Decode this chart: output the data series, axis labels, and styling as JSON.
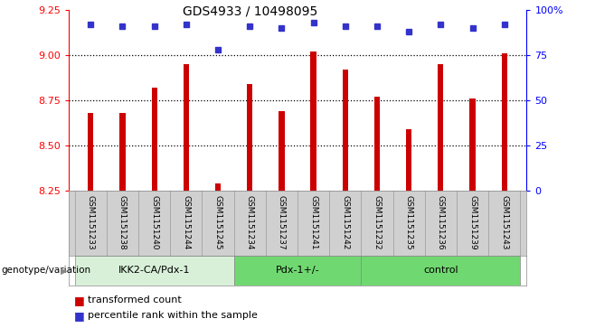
{
  "title": "GDS4933 / 10498095",
  "samples": [
    "GSM1151233",
    "GSM1151238",
    "GSM1151240",
    "GSM1151244",
    "GSM1151245",
    "GSM1151234",
    "GSM1151237",
    "GSM1151241",
    "GSM1151242",
    "GSM1151232",
    "GSM1151235",
    "GSM1151236",
    "GSM1151239",
    "GSM1151243"
  ],
  "transformed_count": [
    8.68,
    8.68,
    8.82,
    8.95,
    8.29,
    8.84,
    8.69,
    9.02,
    8.92,
    8.77,
    8.59,
    8.95,
    8.76,
    9.01
  ],
  "percentile_rank": [
    92,
    91,
    91,
    92,
    78,
    91,
    90,
    93,
    91,
    91,
    88,
    92,
    90,
    92
  ],
  "bar_color": "#cc0000",
  "dot_color": "#3333cc",
  "ylim_left": [
    8.25,
    9.25
  ],
  "ylim_right": [
    0,
    100
  ],
  "yticks_left": [
    8.25,
    8.5,
    8.75,
    9.0,
    9.25
  ],
  "yticks_right": [
    0,
    25,
    50,
    75,
    100
  ],
  "ytick_labels_right": [
    "0",
    "25",
    "50",
    "75",
    "100%"
  ],
  "grid_lines": [
    8.5,
    8.75,
    9.0
  ],
  "groups": [
    {
      "label": "IKK2-CA/Pdx-1",
      "start": 0,
      "end": 4,
      "color": "#d8f0d8"
    },
    {
      "label": "Pdx-1+/-",
      "start": 5,
      "end": 8,
      "color": "#70d870"
    },
    {
      "label": "control",
      "start": 9,
      "end": 13,
      "color": "#70d870"
    }
  ]
}
